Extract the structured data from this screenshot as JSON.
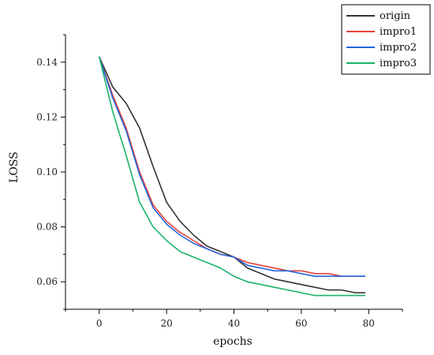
{
  "chart_data": {
    "type": "line",
    "title": "",
    "xlabel": "epochs",
    "ylabel": "LOSS",
    "xlim": [
      -10,
      90
    ],
    "ylim": [
      0.05,
      0.15
    ],
    "xticks": [
      0,
      20,
      40,
      60,
      80
    ],
    "yticks": [
      0.06,
      0.08,
      0.1,
      0.12,
      0.14
    ],
    "ytick_labels": [
      "0.06",
      "0.08",
      "0.10",
      "0.12",
      "0.14"
    ],
    "grid": false,
    "legend_position": "top-right",
    "x": [
      0,
      4,
      8,
      12,
      16,
      20,
      24,
      28,
      32,
      36,
      40,
      44,
      48,
      52,
      56,
      60,
      64,
      68,
      72,
      76,
      79
    ],
    "series": [
      {
        "name": "origin",
        "color": "#333333",
        "values": [
          0.142,
          0.131,
          0.125,
          0.116,
          0.102,
          0.089,
          0.082,
          0.077,
          0.073,
          0.071,
          0.069,
          0.065,
          0.063,
          0.061,
          0.06,
          0.059,
          0.058,
          0.057,
          0.057,
          0.056,
          0.056
        ]
      },
      {
        "name": "impro1",
        "color": "#e8413a",
        "values": [
          0.142,
          0.128,
          0.116,
          0.1,
          0.088,
          0.082,
          0.078,
          0.075,
          0.072,
          0.07,
          0.069,
          0.067,
          0.066,
          0.065,
          0.064,
          0.064,
          0.063,
          0.063,
          0.062,
          0.062,
          0.062
        ]
      },
      {
        "name": "impro2",
        "color": "#2266dd",
        "values": [
          0.142,
          0.127,
          0.115,
          0.099,
          0.087,
          0.081,
          0.077,
          0.074,
          0.072,
          0.07,
          0.069,
          0.066,
          0.065,
          0.064,
          0.064,
          0.063,
          0.062,
          0.062,
          0.062,
          0.062,
          0.062
        ]
      },
      {
        "name": "impro3",
        "color": "#1bb36a",
        "values": [
          0.142,
          0.122,
          0.106,
          0.089,
          0.08,
          0.075,
          0.071,
          0.069,
          0.067,
          0.065,
          0.062,
          0.06,
          0.059,
          0.058,
          0.057,
          0.056,
          0.055,
          0.055,
          0.055,
          0.055,
          0.055
        ]
      }
    ]
  }
}
